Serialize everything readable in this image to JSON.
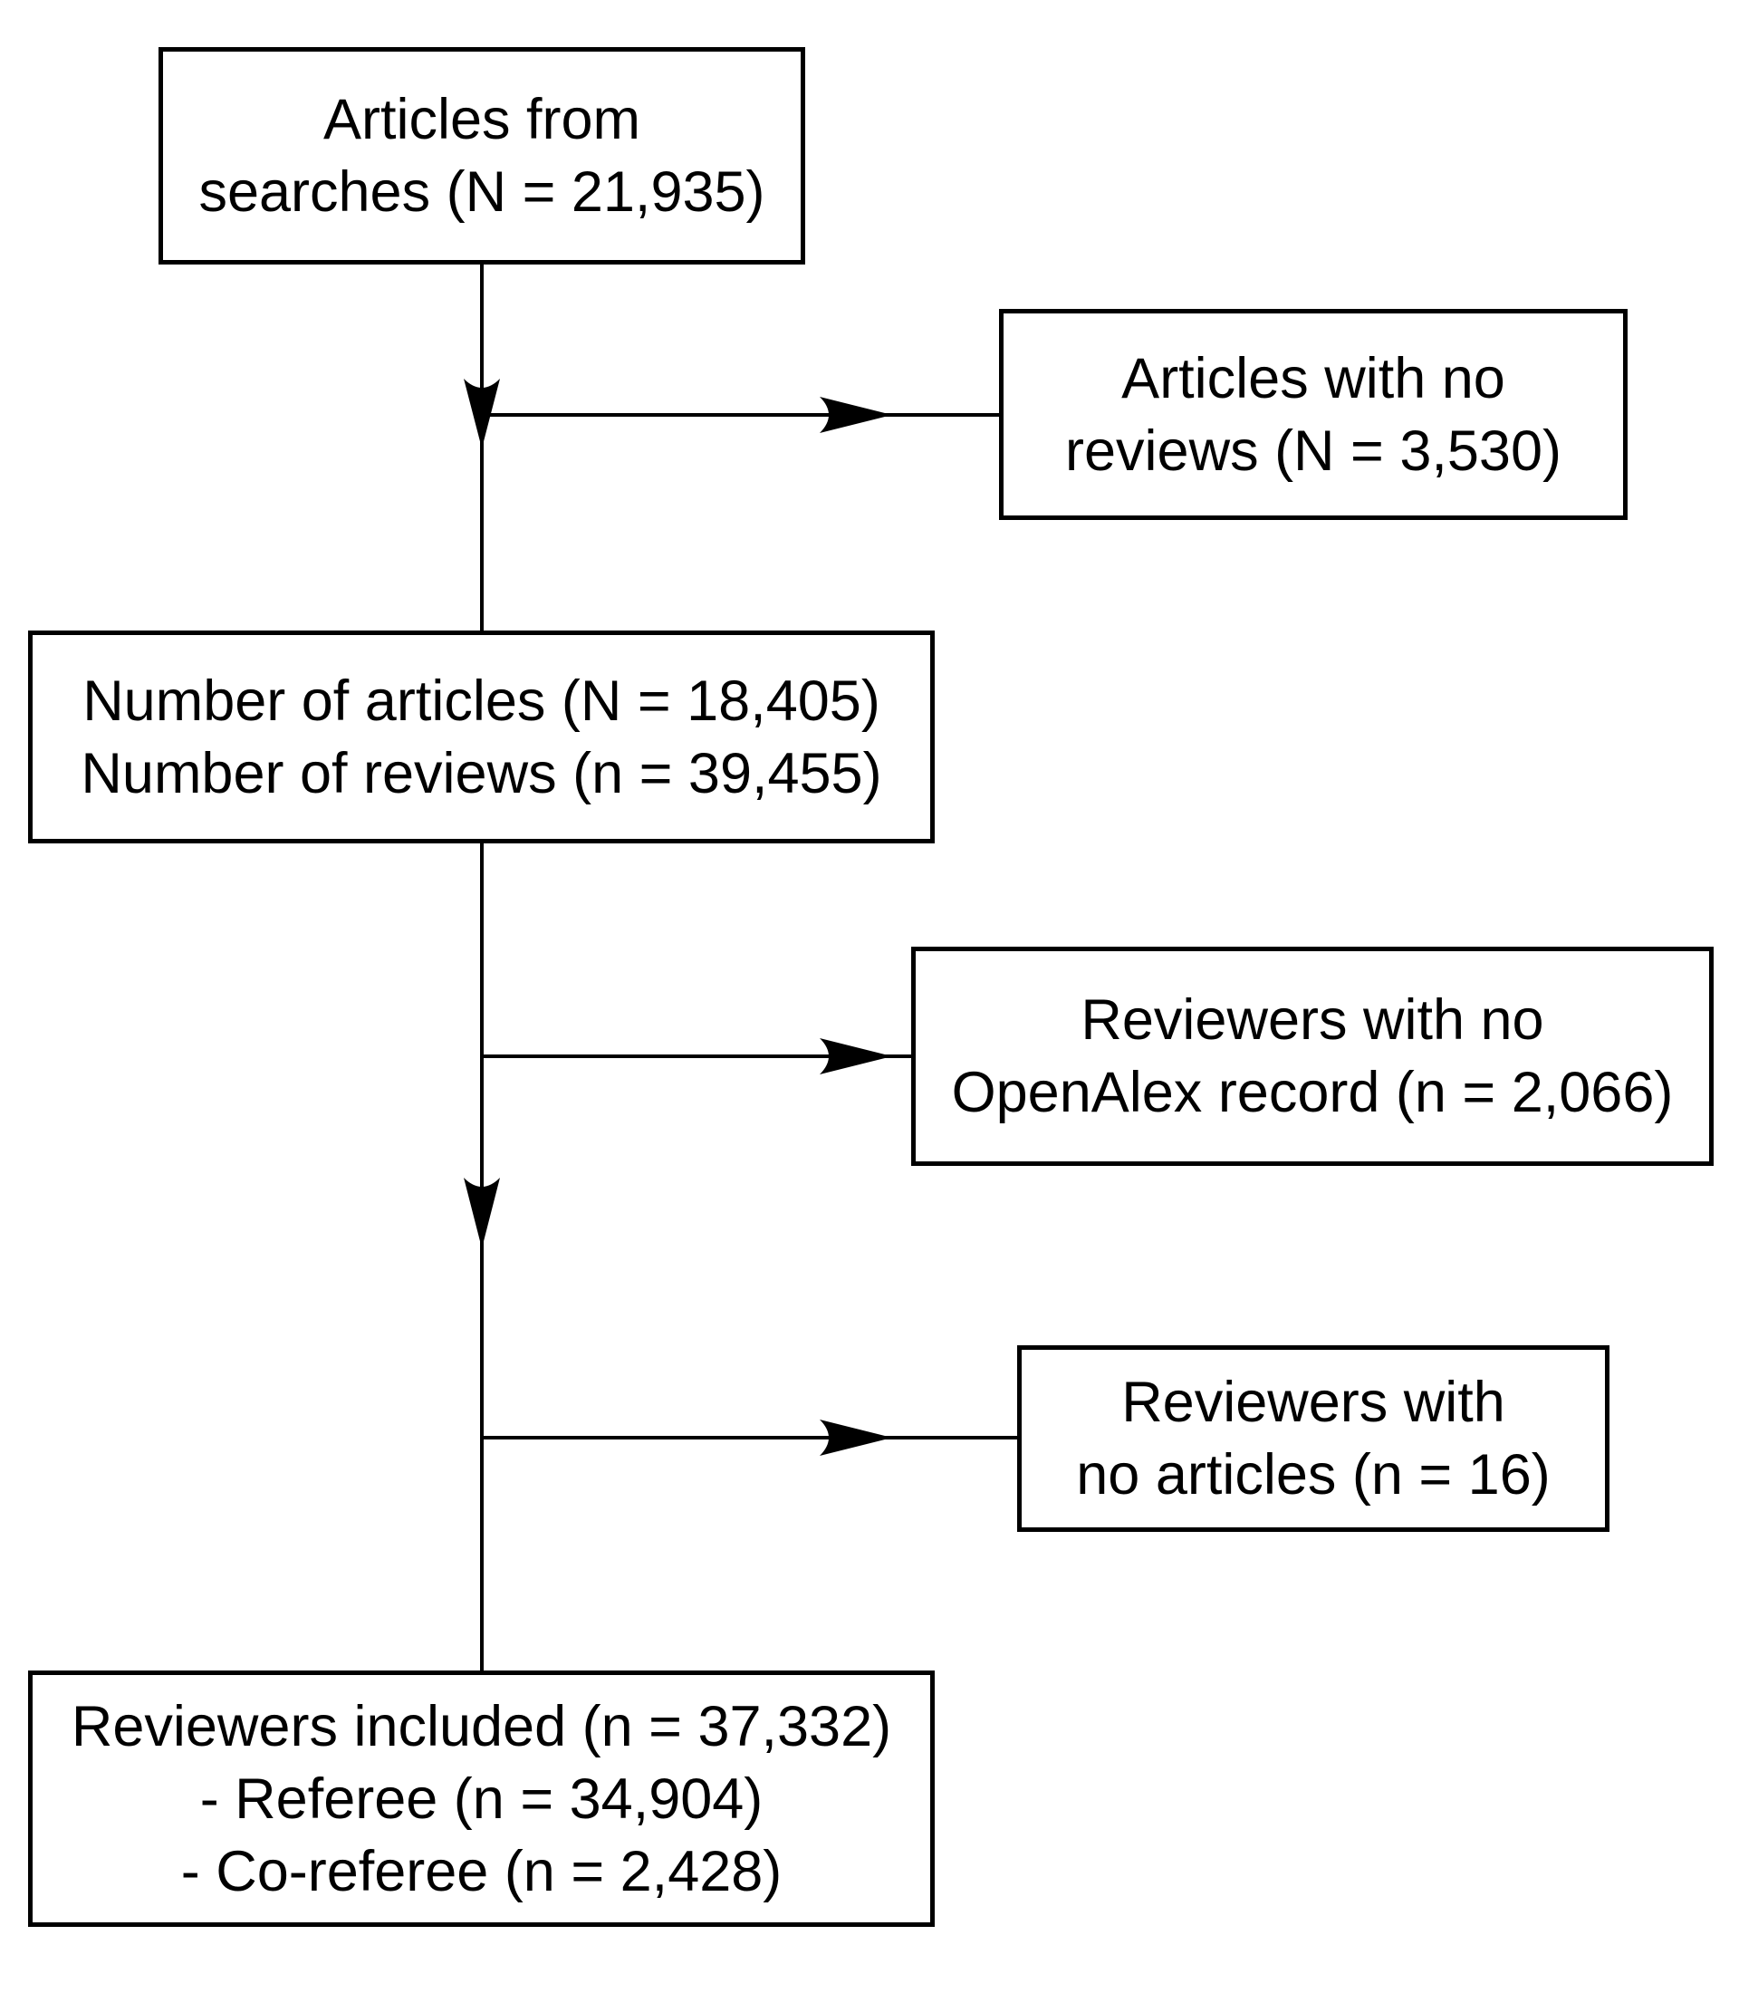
{
  "flowchart": {
    "box_searches": {
      "line1": "Articles from",
      "line2": "searches (N = 21,935)"
    },
    "box_excluded_no_reviews": {
      "line1": "Articles with no",
      "line2": "reviews (N = 3,530)"
    },
    "box_articles_reviews": {
      "line1": "Number of articles (N = 18,405)",
      "line2": "Number of reviews (n = 39,455)"
    },
    "box_excluded_no_openalex": {
      "line1": "Reviewers with no",
      "line2": "OpenAlex record (n = 2,066)"
    },
    "box_excluded_no_articles": {
      "line1": "Reviewers with",
      "line2": "no articles (n = 16)"
    },
    "box_included": {
      "line1": "Reviewers included (n = 37,332)",
      "line2": "- Referee (n = 34,904)",
      "line3": "- Co-referee (n = 2,428)"
    }
  },
  "colors": {
    "stroke": "#000000",
    "background": "#ffffff"
  }
}
